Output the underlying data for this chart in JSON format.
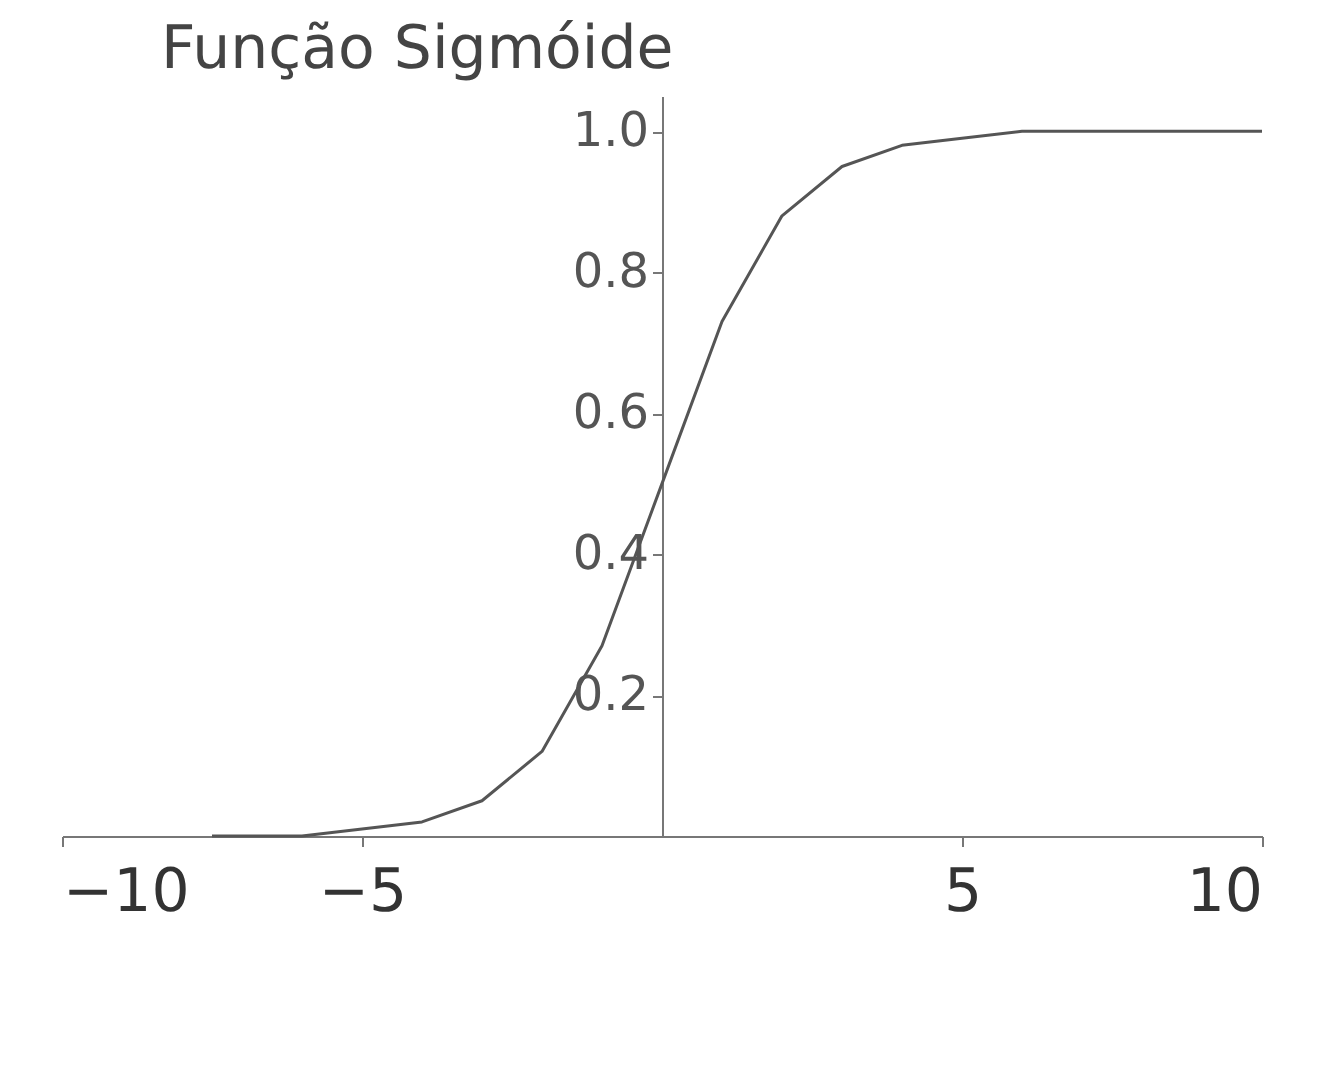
{
  "chart_data": {
    "type": "line",
    "title": "Função Sigmóide",
    "x": [
      -7.5,
      -6,
      -5,
      -4,
      -3,
      -2,
      -1,
      0,
      1,
      2,
      3,
      4,
      5,
      6,
      7,
      8,
      10
    ],
    "series": [
      {
        "color": "#555555",
        "values": [
          0.0,
          0.0,
          0.01,
          0.02,
          0.05,
          0.12,
          0.27,
          0.5,
          0.73,
          0.88,
          0.95,
          0.98,
          0.99,
          1.0,
          1.0,
          1.0,
          1.0
        ]
      }
    ],
    "xlim": [
      -10,
      10
    ],
    "xticks": [
      -10,
      -5,
      5,
      10
    ],
    "ylim": [
      0,
      1.05
    ],
    "yticks": [
      0.2,
      0.4,
      0.6,
      0.8,
      {
        "value": 1.0,
        "label": "1.0"
      }
    ],
    "grid": false,
    "marker": "none",
    "line_style": "solid"
  }
}
